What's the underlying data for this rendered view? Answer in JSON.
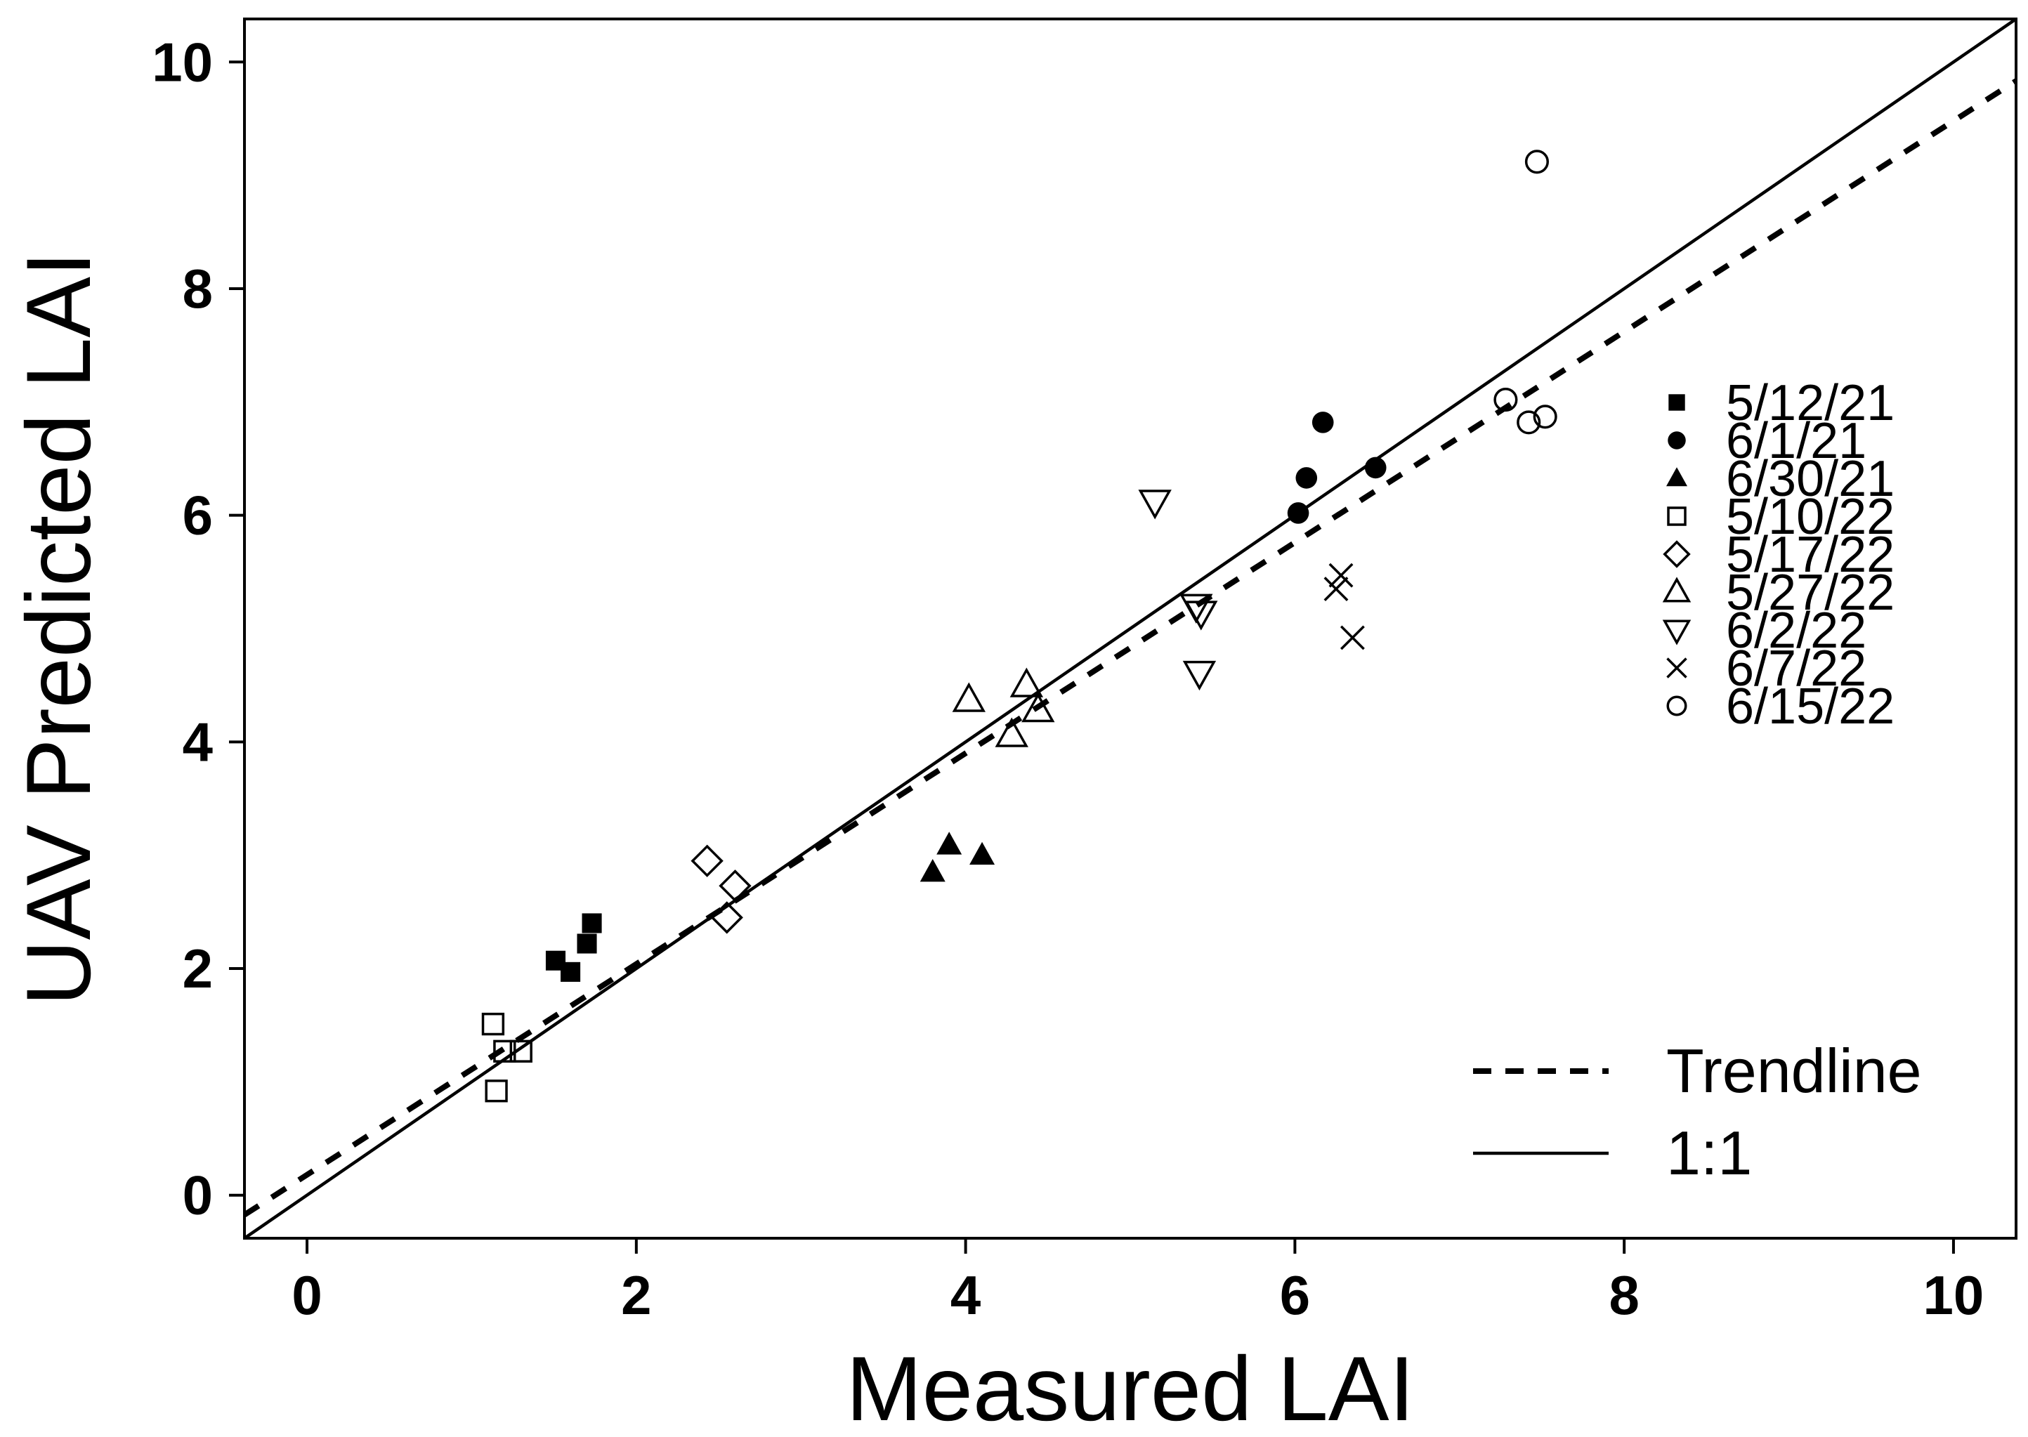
{
  "chart_data": {
    "type": "scatter",
    "title": "",
    "xlabel": "Measured LAI",
    "ylabel": "UAV Predicted LAI",
    "xlim": [
      -0.38,
      10.38
    ],
    "ylim": [
      -0.38,
      10.38
    ],
    "xticks": [
      0,
      2,
      4,
      6,
      8,
      10
    ],
    "yticks": [
      0,
      2,
      4,
      6,
      8,
      10
    ],
    "xtick_labels": [
      "0",
      "2",
      "4",
      "6",
      "8",
      "10"
    ],
    "ytick_labels": [
      "0",
      "2",
      "4",
      "6",
      "8",
      "10"
    ],
    "grid": false,
    "legend_position": "right",
    "series": [
      {
        "name": "5/12/21",
        "marker": "square-filled",
        "points": [
          [
            1.51,
            2.07
          ],
          [
            1.6,
            1.97
          ],
          [
            1.7,
            2.22
          ],
          [
            1.73,
            2.4
          ]
        ]
      },
      {
        "name": "6/1/21",
        "marker": "circle-filled",
        "points": [
          [
            6.02,
            6.02
          ],
          [
            6.07,
            6.33
          ],
          [
            6.17,
            6.82
          ],
          [
            6.49,
            6.42
          ]
        ]
      },
      {
        "name": "6/30/21",
        "marker": "triangle-up-filled",
        "points": [
          [
            3.8,
            2.85
          ],
          [
            3.9,
            3.09
          ],
          [
            4.1,
            3.0
          ]
        ]
      },
      {
        "name": "5/10/22",
        "marker": "square-open",
        "points": [
          [
            1.13,
            1.51
          ],
          [
            1.15,
            0.92
          ],
          [
            1.2,
            1.27
          ],
          [
            1.3,
            1.27
          ]
        ]
      },
      {
        "name": "5/17/22",
        "marker": "diamond-open",
        "points": [
          [
            2.43,
            2.95
          ],
          [
            2.55,
            2.45
          ],
          [
            2.6,
            2.73
          ]
        ]
      },
      {
        "name": "5/27/22",
        "marker": "triangle-up-open",
        "points": [
          [
            4.02,
            4.37
          ],
          [
            4.28,
            4.06
          ],
          [
            4.37,
            4.5
          ],
          [
            4.44,
            4.28
          ]
        ]
      },
      {
        "name": "6/2/22",
        "marker": "triangle-down-open",
        "points": [
          [
            5.15,
            6.12
          ],
          [
            5.4,
            5.2
          ],
          [
            5.43,
            5.14
          ],
          [
            5.42,
            4.61
          ]
        ]
      },
      {
        "name": "6/7/22",
        "marker": "x",
        "points": [
          [
            6.25,
            5.35
          ],
          [
            6.28,
            5.47
          ],
          [
            6.35,
            4.92
          ]
        ]
      },
      {
        "name": "6/15/22",
        "marker": "circle-open",
        "points": [
          [
            7.28,
            7.02
          ],
          [
            7.42,
            6.82
          ],
          [
            7.52,
            6.87
          ],
          [
            7.47,
            9.12
          ]
        ]
      }
    ],
    "lines": [
      {
        "name": "Trendline",
        "style": "dashed",
        "slope": 0.93,
        "intercept": 0.18
      },
      {
        "name": "1:1",
        "style": "solid",
        "slope": 1.0,
        "intercept": 0.0
      }
    ]
  }
}
